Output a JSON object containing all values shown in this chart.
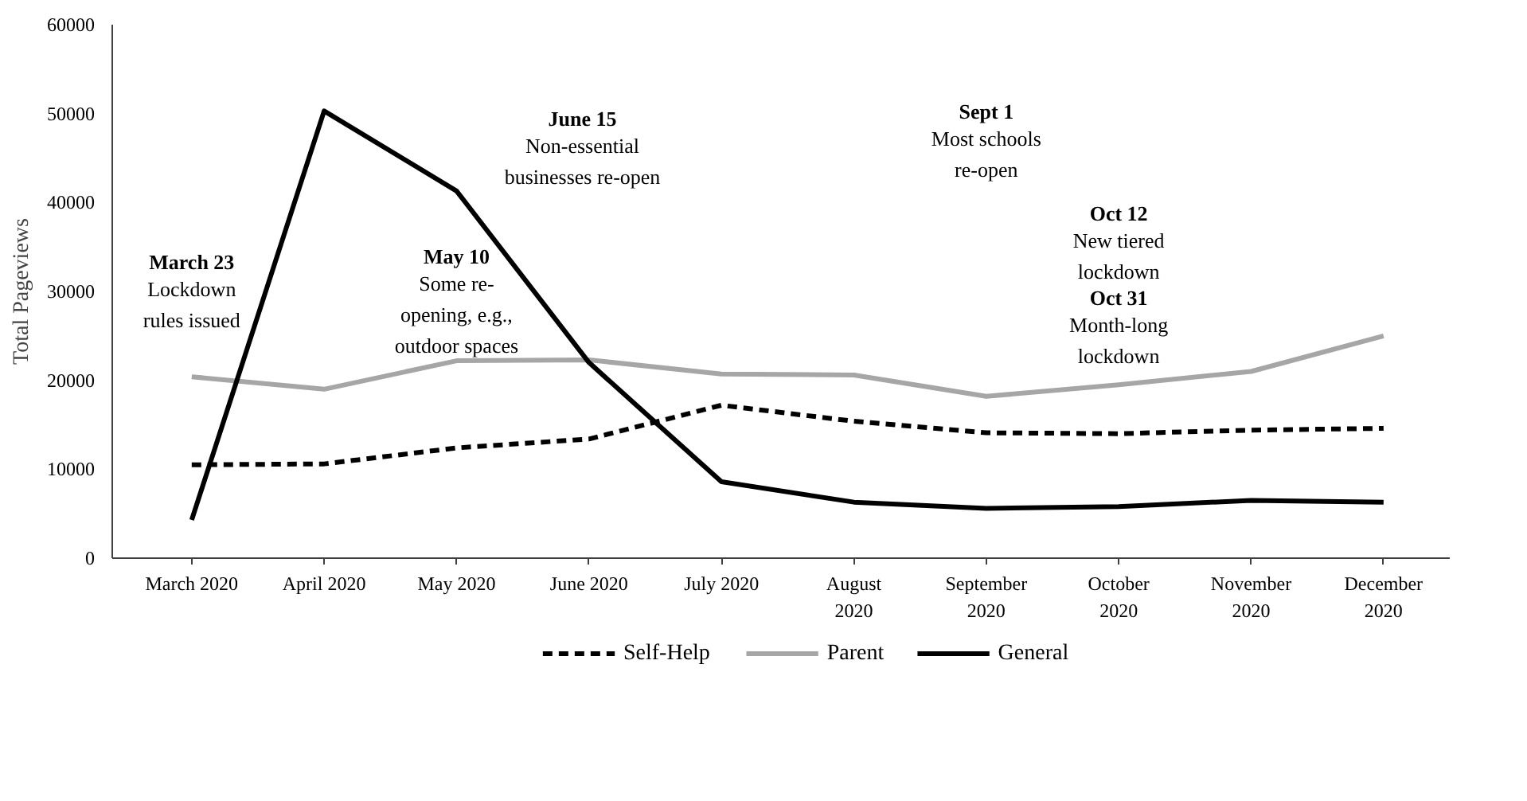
{
  "chart_data": {
    "type": "line",
    "ylabel": "Total Pageviews",
    "categories": [
      "March 2020",
      "April 2020",
      "May 2020",
      "June 2020",
      "July 2020",
      "August 2020",
      "September 2020",
      "October 2020",
      "November 2020",
      "December 2020"
    ],
    "ylim": [
      0,
      60000
    ],
    "yticks": [
      0,
      10000,
      20000,
      30000,
      40000,
      50000,
      60000
    ],
    "grid": false,
    "legend": "bottom",
    "series": [
      {
        "name": "Self-Help",
        "color": "#000000",
        "line_style": "dashed",
        "values": [
          10500,
          10600,
          12400,
          13400,
          17200,
          15400,
          14100,
          14000,
          14400,
          14600
        ]
      },
      {
        "name": "Parent",
        "color": "#a6a6a6",
        "line_style": "solid",
        "values": [
          20400,
          19000,
          22200,
          22300,
          20700,
          20600,
          18200,
          19500,
          21000,
          25000
        ]
      },
      {
        "name": "General",
        "color": "#000000",
        "line_style": "solid",
        "values": [
          4300,
          50300,
          41300,
          22000,
          8600,
          6300,
          5600,
          5800,
          6500,
          6300
        ]
      }
    ],
    "annotations": [
      "March 23\nLockdown\nrules issued",
      "May 10\nSome re-\nopening, e.g.,\noutdoor spaces",
      "June 15\nNon-essential\nbusinesses re-open",
      "Sept 1\nMost schools\nre-open",
      "Oct 12\nNew tiered\nlockdown",
      "Oct 31\nMonth-long\nlockdown"
    ]
  }
}
